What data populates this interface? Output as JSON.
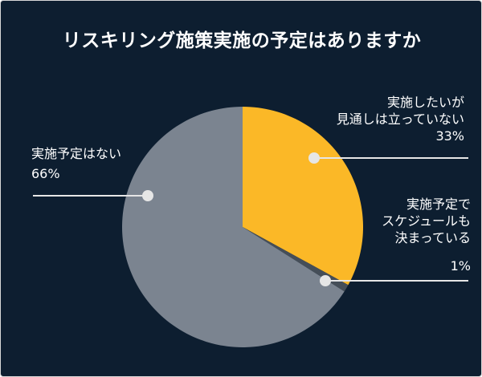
{
  "chart_data": {
    "type": "pie",
    "title": "リスキリング施策実施の予定はありますか",
    "slices": [
      {
        "label_lines": [
          "実施したいが",
          "見通しは立っていない"
        ],
        "pct_label": "33%",
        "value": 33,
        "color": "#fbb827"
      },
      {
        "label_lines": [
          "実施予定で",
          "スケジュールも",
          "決まっている"
        ],
        "pct_label": "1%",
        "value": 1,
        "color": "#454e58"
      },
      {
        "label_lines": [
          "実施予定はない"
        ],
        "pct_label": "66%",
        "value": 66,
        "color": "#7b8490"
      }
    ],
    "start_angle": "12 o'clock",
    "direction": "clockwise",
    "legend": "none (callout labels)"
  },
  "colors": {
    "background": "#0d1e30",
    "text": "#ffffff",
    "leader_line": "#e6e6e6"
  }
}
